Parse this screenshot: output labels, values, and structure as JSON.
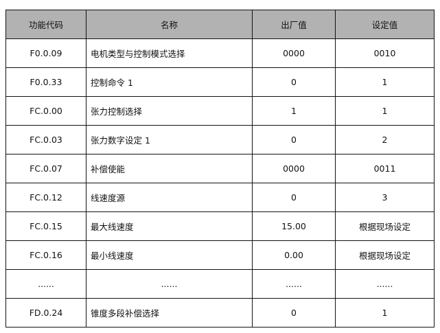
{
  "table": {
    "headers": [
      "功能代码",
      "名称",
      "出厂值",
      "设定值"
    ],
    "rows": [
      [
        "F0.0.09",
        "电机类型与控制模式选择",
        "0000",
        "0010"
      ],
      [
        "F0.0.33",
        "控制命令 1",
        "0",
        "1"
      ],
      [
        "FC.0.00",
        "张力控制选择",
        "1",
        "1"
      ],
      [
        "FC.0.03",
        "张力数字设定 1",
        "0",
        "2"
      ],
      [
        "FC.0.07",
        "补偿使能",
        "0000",
        "0011"
      ],
      [
        "FC.0.12",
        "线速度源",
        "0",
        "3"
      ],
      [
        "FC.0.15",
        "最大线速度",
        "15.00",
        "根据现场设定"
      ],
      [
        "FC.0.16",
        "最小线速度",
        "0.00",
        "根据现场设定"
      ],
      [
        "......",
        "......",
        "......",
        "......"
      ],
      [
        "FD.0.24",
        "锥度多段补偿选择",
        "0",
        "1"
      ]
    ]
  },
  "colors": {
    "header_bg": "#b2b2b2",
    "border": "#111111"
  }
}
